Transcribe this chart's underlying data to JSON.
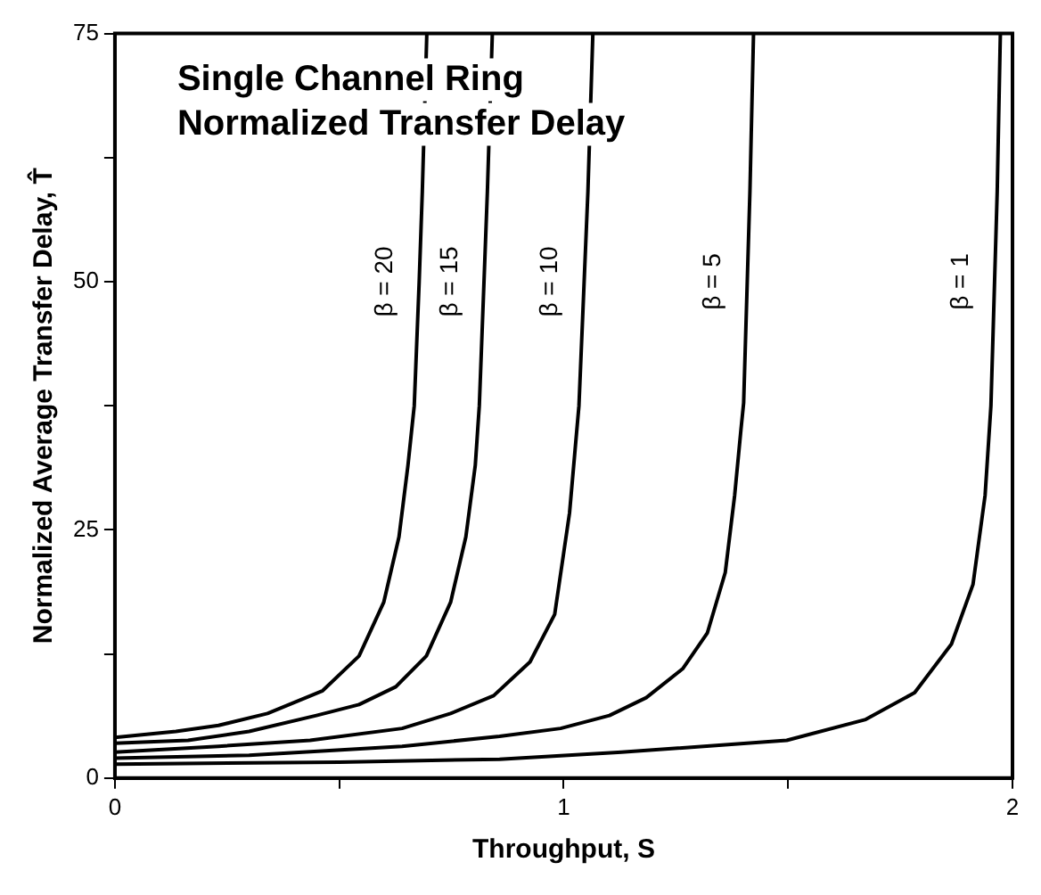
{
  "chart_data": {
    "type": "line",
    "title": "Single Channel Ring\nNormalized Transfer Delay",
    "xlabel": "Throughput, S",
    "ylabel": "Normalized Average Transfer Delay, T̂",
    "xlim": [
      0,
      2
    ],
    "xticks": [
      0,
      {
        "value": 0.5,
        "label": null
      },
      1,
      {
        "value": 1.5,
        "label": null
      },
      2
    ],
    "ylim": [
      0,
      75
    ],
    "yticks": [
      0,
      {
        "value": 12.5,
        "label": null
      },
      25,
      {
        "value": 37.5,
        "label": null
      },
      50,
      {
        "value": 62.5,
        "label": null
      },
      75
    ],
    "grid": false,
    "legend": false,
    "marker": "none",
    "line_style": "solid",
    "series": [
      {
        "name": "β = 20",
        "color": "#000000",
        "x": [
          0,
          0.136,
          0.231,
          0.34,
          0.463,
          0.544,
          0.599,
          0.633,
          0.653,
          0.667,
          0.678,
          0.685,
          0.695
        ],
        "values": [
          4.1,
          4.7,
          5.3,
          6.5,
          8.8,
          12.3,
          17.7,
          24.3,
          31.5,
          37.5,
          50,
          59.1,
          75
        ]
      },
      {
        "name": "β = 15",
        "color": "#000000",
        "x": [
          0,
          0.163,
          0.299,
          0.449,
          0.544,
          0.626,
          0.694,
          0.748,
          0.782,
          0.803,
          0.812,
          0.83,
          0.841
        ],
        "values": [
          3.5,
          3.8,
          4.7,
          6.3,
          7.4,
          9.2,
          12.3,
          17.7,
          24.3,
          31.5,
          37.5,
          59.1,
          75
        ]
      },
      {
        "name": "β = 10",
        "color": "#000000",
        "x": [
          0,
          0.231,
          0.435,
          0.64,
          0.748,
          0.844,
          0.925,
          0.98,
          1.013,
          1.034,
          1.054,
          1.065
        ],
        "values": [
          2.6,
          3.2,
          3.8,
          5,
          6.5,
          8.3,
          11.7,
          16.5,
          26.7,
          37.5,
          59.1,
          75
        ]
      },
      {
        "name": "β = 5",
        "color": "#000000",
        "x": [
          0,
          0.299,
          0.64,
          0.857,
          0.993,
          1.102,
          1.184,
          1.265,
          1.32,
          1.36,
          1.381,
          1.395,
          1.401,
          1.415,
          1.423
        ],
        "values": [
          2,
          2.3,
          3.2,
          4.2,
          5,
          6.3,
          8.1,
          11,
          14.6,
          20.7,
          28.5,
          35.1,
          37.8,
          59.1,
          75
        ]
      },
      {
        "name": "β = 1",
        "color": "#000000",
        "x": [
          0,
          0.5,
          0.857,
          1.129,
          1.497,
          1.673,
          1.782,
          1.864,
          1.912,
          1.939,
          1.952,
          1.966,
          1.973
        ],
        "values": [
          1.4,
          1.6,
          1.9,
          2.6,
          3.8,
          5.9,
          8.6,
          13.5,
          19.5,
          28.5,
          37.5,
          59.1,
          75
        ]
      }
    ]
  }
}
